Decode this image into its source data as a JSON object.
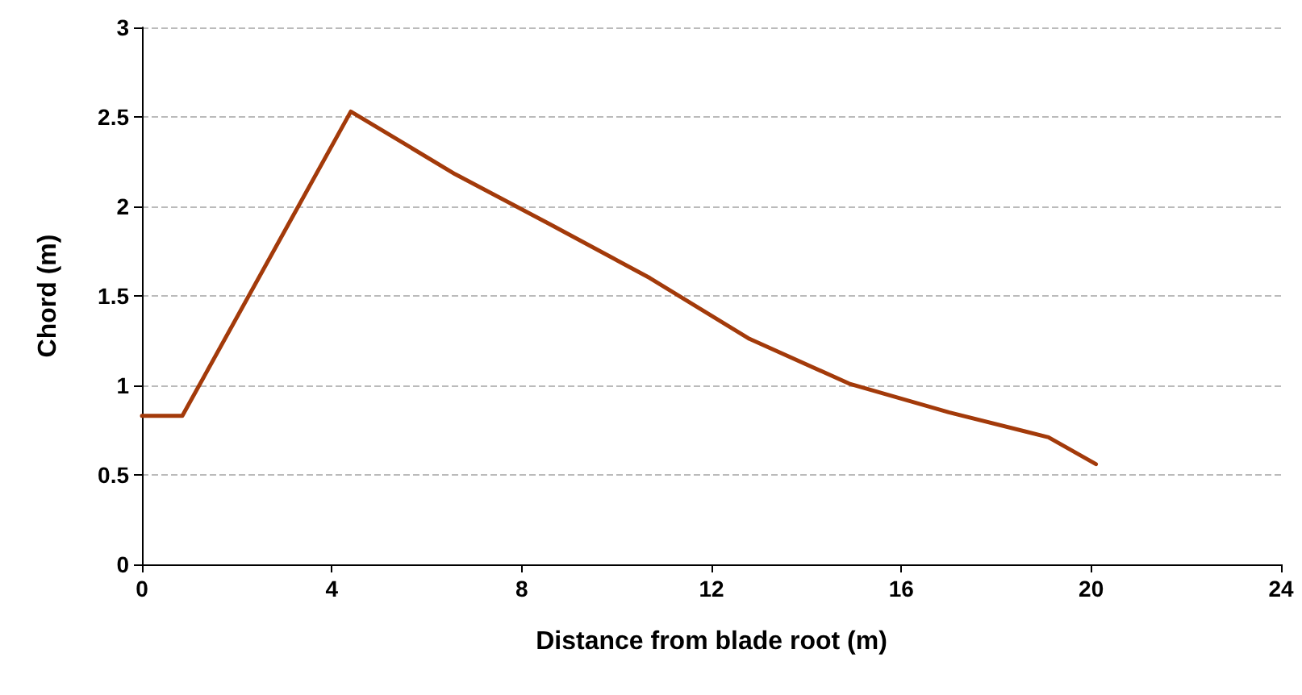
{
  "chart_data": {
    "type": "line",
    "xlabel": "Distance from blade root (m)",
    "ylabel": "Chord (m)",
    "x": [
      0,
      0.85,
      4.4,
      6.6,
      8.6,
      10.7,
      12.8,
      14.9,
      17,
      19.1,
      20.1
    ],
    "series": [
      {
        "color": "#a33a0a",
        "values": [
          0.83,
          0.83,
          2.53,
          2.18,
          1.9,
          1.6,
          1.26,
          1.01,
          0.85,
          0.71,
          0.56
        ]
      }
    ],
    "xlim": [
      0,
      24
    ],
    "xticks": [
      0,
      4,
      8,
      12,
      16,
      20,
      24
    ],
    "ylim": [
      0,
      3
    ],
    "yticks": [
      0,
      0.5,
      1,
      1.5,
      2,
      2.5,
      3
    ],
    "grid": "y",
    "marker": "none",
    "line_style": "solid"
  }
}
